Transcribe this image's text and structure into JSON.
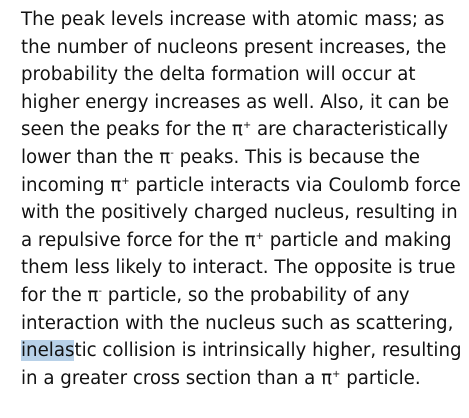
{
  "paragraph": {
    "l1": "The peak levels increase with atomic mass; as",
    "l2": "the number of nucleons present increases, the",
    "l3": "probability the delta formation will occur at",
    "l4": "higher energy increases as well. Also, it can be",
    "l5a": "seen the peaks for the π",
    "l5sup": "+",
    "l5b": " are characteristically",
    "l6a": "lower than the π",
    "l6sup": "-",
    "l6b": " peaks. This is because the",
    "l7a": "incoming π",
    "l7sup": "+",
    "l7b": " particle interacts via Coulomb force",
    "l8": "with the positively charged nucleus, resulting in",
    "l9a": "a repulsive force for the π",
    "l9sup": "+",
    "l9b": " particle and making",
    "l10": "them less likely to interact. The opposite is true",
    "l11a": "for the π",
    "l11sup": "-",
    "l11b": " particle, so the probability of any",
    "l12": "interaction with the nucleus such as scattering,",
    "l13hl": "inelas",
    "l13b": "tic collision is intrinsically higher, resulting",
    "l14a": "in a greater cross section than a π",
    "l14sup": "+",
    "l14b": " particle."
  },
  "colors": {
    "text": "#111111",
    "selection_highlight": "#b8d1e8",
    "background": "#ffffff"
  }
}
